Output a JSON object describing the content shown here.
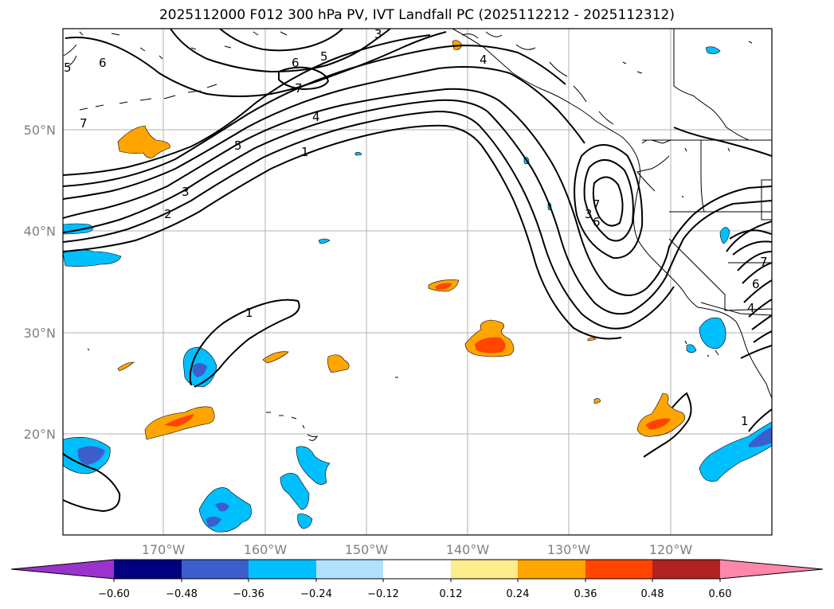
{
  "title": "2025112000 F012 300 hPa PV, IVT Landfall PC (2025112212 - 2025112312)",
  "map": {
    "lat_labels": [
      "50°N",
      "40°N",
      "30°N",
      "20°N"
    ],
    "lon_labels": [
      "170°W",
      "160°W",
      "150°W",
      "140°W",
      "130°W",
      "120°W"
    ],
    "contour_labels": [
      "6",
      "5",
      "7",
      "3",
      "5",
      "6",
      "7",
      "4",
      "4",
      "5",
      "1",
      "3",
      "2",
      "1",
      "7",
      "3",
      "6",
      "7",
      "6",
      "4",
      "1"
    ]
  },
  "colorbar": {
    "colors": [
      "#9933cc",
      "#000080",
      "#3a5fcd",
      "#00bfff",
      "#b0e2ff",
      "#ffffff",
      "#ffec8b",
      "#ffa500",
      "#ff4500",
      "#b22222",
      "#ff88aa"
    ],
    "tick_labels": [
      "−0.60",
      "−0.48",
      "−0.36",
      "−0.24",
      "−0.12",
      "0.12",
      "0.24",
      "0.36",
      "0.48",
      "0.60"
    ]
  }
}
